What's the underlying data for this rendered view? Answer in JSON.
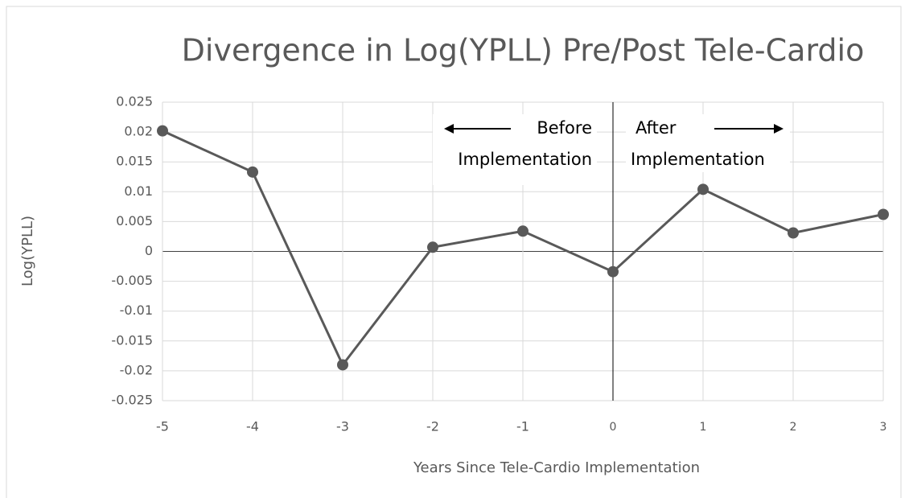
{
  "chart_data": {
    "type": "line",
    "title": "Divergence in Log(YPLL) Pre/Post Tele-Cardio",
    "x_label": "Years Since Tele-Cardio Implementation",
    "y_label": "Log(YPLL)",
    "x": [
      -5,
      -4,
      -3,
      -2,
      -1,
      0,
      1,
      2,
      3
    ],
    "series": [
      {
        "name": "Log(YPLL)",
        "color": "#595959",
        "values": [
          0.0202,
          0.0133,
          -0.019,
          0.0007,
          0.0034,
          -0.0034,
          0.0104,
          0.0031,
          0.0062
        ]
      }
    ],
    "xlim": [
      -5,
      3
    ],
    "xticks": [
      -5,
      -4,
      -3,
      -2,
      -1,
      0,
      1,
      2,
      3
    ],
    "ylim": [
      -0.025,
      0.025
    ],
    "yticks": [
      -0.025,
      -0.02,
      -0.015,
      -0.01,
      -0.005,
      0,
      0.005,
      0.01,
      0.015,
      0.02,
      0.025
    ],
    "grid": true,
    "annotations": [
      "Before",
      "Implementation",
      "After",
      "Implementation"
    ]
  }
}
